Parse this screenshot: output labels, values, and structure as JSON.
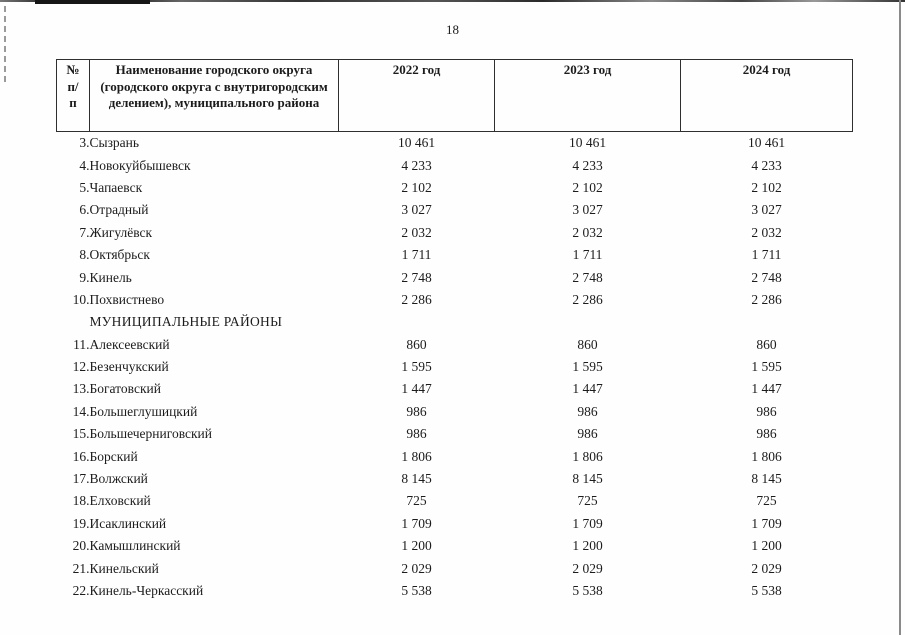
{
  "page": {
    "number": "18"
  },
  "table": {
    "columns": [
      {
        "label": "№ п/п"
      },
      {
        "label": "Наименование городского округа (городского округа с внутригородским делением), муниципального района"
      },
      {
        "label": "2022 год"
      },
      {
        "label": "2023 год"
      },
      {
        "label": "2024 год"
      }
    ],
    "rows": [
      {
        "num": "3.",
        "name": "Сызрань",
        "values": [
          "10 461",
          "10 461",
          "10 461"
        ]
      },
      {
        "num": "4.",
        "name": "Новокуйбышевск",
        "values": [
          "4 233",
          "4 233",
          "4 233"
        ]
      },
      {
        "num": "5.",
        "name": "Чапаевск",
        "values": [
          "2 102",
          "2 102",
          "2 102"
        ]
      },
      {
        "num": "6.",
        "name": "Отрадный",
        "values": [
          "3 027",
          "3 027",
          "3 027"
        ]
      },
      {
        "num": "7.",
        "name": "Жигулёвск",
        "values": [
          "2 032",
          "2 032",
          "2 032"
        ]
      },
      {
        "num": "8.",
        "name": "Октябрьск",
        "values": [
          "1 711",
          "1 711",
          "1 711"
        ]
      },
      {
        "num": "9.",
        "name": "Кинель",
        "values": [
          "2 748",
          "2 748",
          "2 748"
        ]
      },
      {
        "num": "10.",
        "name": "Похвистнево",
        "values": [
          "2 286",
          "2 286",
          "2 286"
        ]
      },
      {
        "section": "МУНИЦИПАЛЬНЫЕ РАЙОНЫ"
      },
      {
        "num": "11.",
        "name": "Алексеевский",
        "values": [
          "860",
          "860",
          "860"
        ]
      },
      {
        "num": "12.",
        "name": "Безенчукский",
        "values": [
          "1 595",
          "1 595",
          "1 595"
        ]
      },
      {
        "num": "13.",
        "name": "Богатовский",
        "values": [
          "1 447",
          "1 447",
          "1 447"
        ]
      },
      {
        "num": "14.",
        "name": "Большеглушицкий",
        "values": [
          "986",
          "986",
          "986"
        ]
      },
      {
        "num": "15.",
        "name": "Большечерниговский",
        "values": [
          "986",
          "986",
          "986"
        ]
      },
      {
        "num": "16.",
        "name": "Борский",
        "values": [
          "1 806",
          "1 806",
          "1 806"
        ]
      },
      {
        "num": "17.",
        "name": "Волжский",
        "values": [
          "8 145",
          "8 145",
          "8 145"
        ]
      },
      {
        "num": "18.",
        "name": "Елховский",
        "values": [
          "725",
          "725",
          "725"
        ]
      },
      {
        "num": "19.",
        "name": "Исаклинский",
        "values": [
          "1 709",
          "1 709",
          "1 709"
        ]
      },
      {
        "num": "20.",
        "name": "Камышлинский",
        "values": [
          "1 200",
          "1 200",
          "1 200"
        ]
      },
      {
        "num": "21.",
        "name": "Кинельский",
        "values": [
          "2 029",
          "2 029",
          "2 029"
        ]
      },
      {
        "num": "22.",
        "name": "Кинель-Черкасский",
        "values": [
          "5 538",
          "5 538",
          "5 538"
        ]
      }
    ]
  }
}
